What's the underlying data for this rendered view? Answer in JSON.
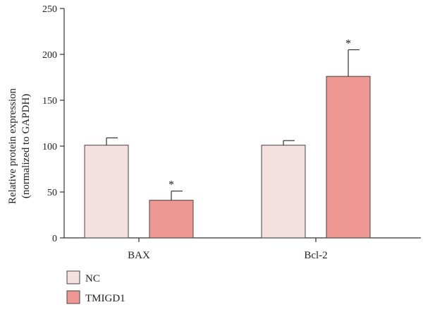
{
  "chart_data": {
    "type": "bar",
    "categories": [
      "BAX",
      "Bcl-2"
    ],
    "series": [
      {
        "name": "NC",
        "values": [
          101,
          101
        ],
        "errors": [
          8,
          5
        ],
        "significance": [
          "",
          ""
        ]
      },
      {
        "name": "TMIGD1",
        "values": [
          41,
          176
        ],
        "errors": [
          10,
          29
        ],
        "significance": [
          "*",
          "*"
        ]
      }
    ],
    "ylabel_lines": [
      "Relative protein expression",
      "(normalized to GAPDH)"
    ],
    "ylim": [
      0,
      250
    ],
    "yticks": [
      0,
      50,
      100,
      150,
      200,
      250
    ],
    "legend_position": "bottom-left",
    "grid": false
  },
  "colors": {
    "NC": "#f4e0df",
    "TMIGD1": "#ef9792",
    "stroke": "#444444"
  }
}
